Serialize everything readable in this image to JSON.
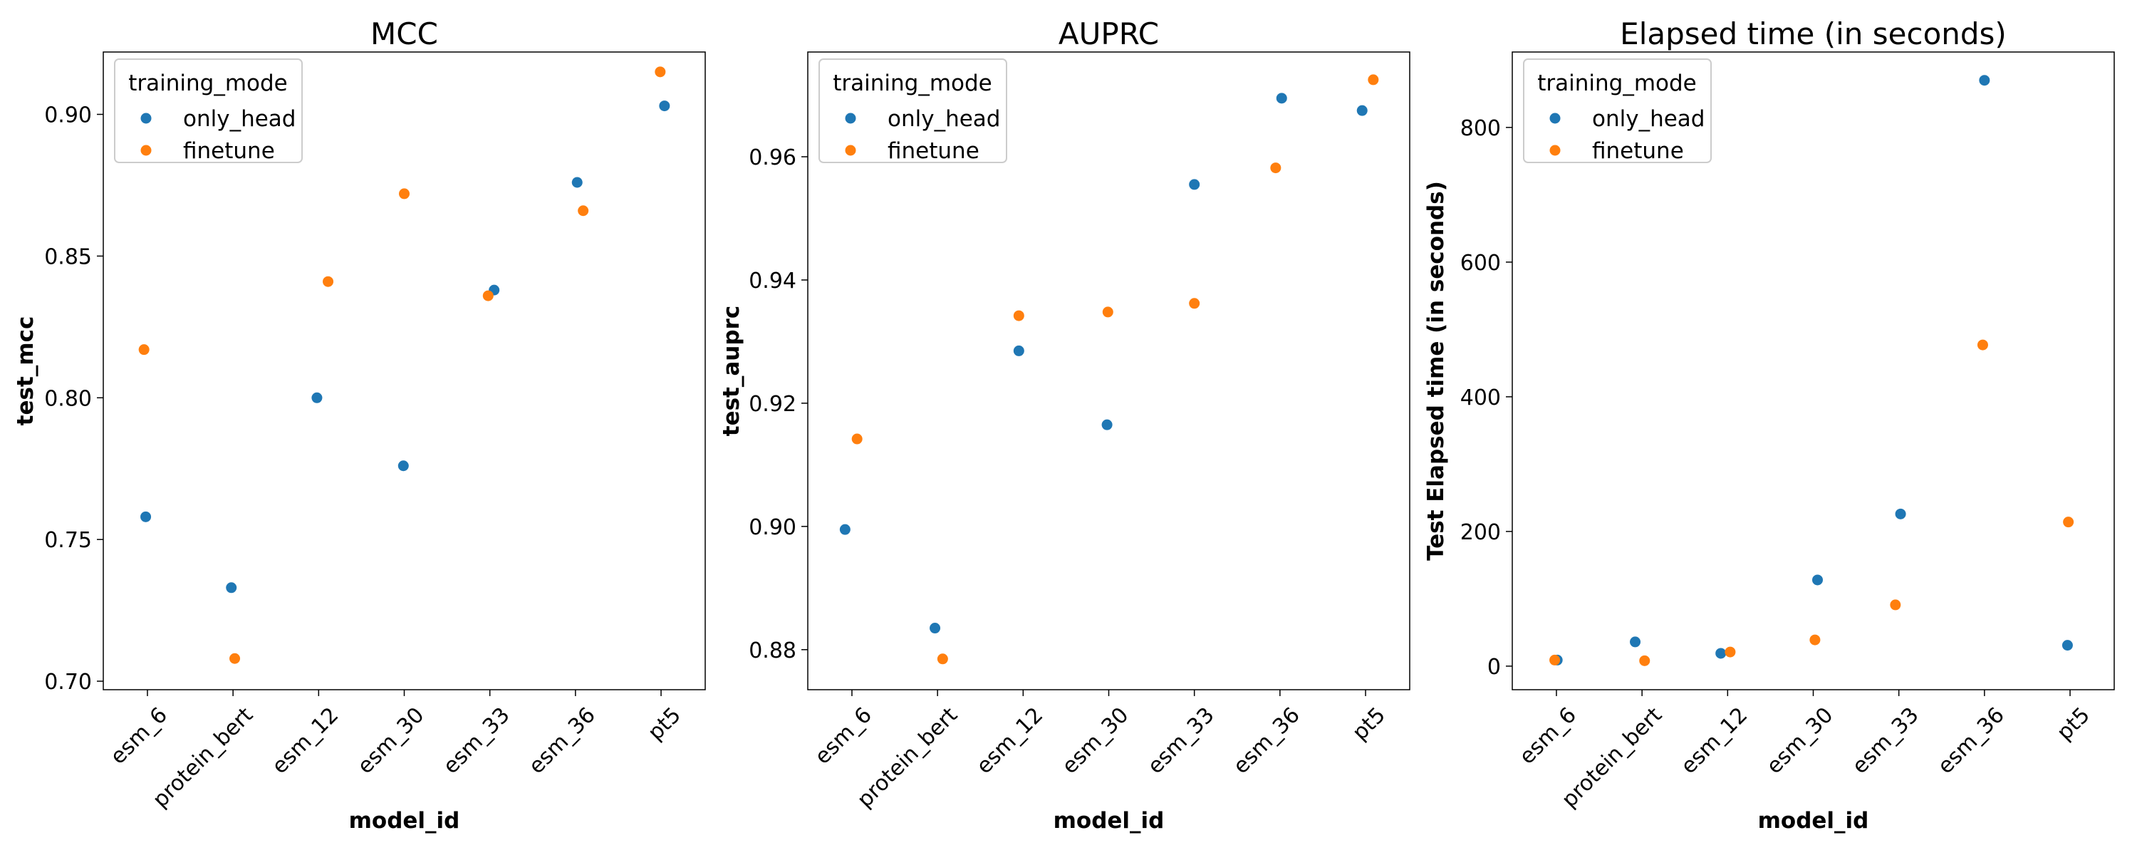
{
  "colors": {
    "only_head": "#1f77b4",
    "finetune": "#ff7f0e"
  },
  "chart_data": [
    {
      "type": "scatter",
      "title": "MCC",
      "xlabel": "model_id",
      "ylabel": "test_mcc",
      "categories": [
        "esm_6",
        "protein_bert",
        "esm_12",
        "esm_30",
        "esm_33",
        "esm_36",
        "pt5"
      ],
      "ylim": [
        0.697,
        0.922
      ],
      "yticks": [
        0.7,
        0.75,
        0.8,
        0.85,
        0.9
      ],
      "ytick_labels": [
        "0.70",
        "0.75",
        "0.80",
        "0.85",
        "0.90"
      ],
      "legend": {
        "title": "training_mode",
        "position": "top-left",
        "entries": [
          "only_head",
          "finetune"
        ]
      },
      "series": [
        {
          "name": "only_head",
          "x": [
            -0.02,
            0.98,
            1.98,
            2.99,
            4.05,
            5.02,
            6.04
          ],
          "values": [
            0.758,
            0.733,
            0.8,
            0.776,
            0.838,
            0.876,
            0.903
          ]
        },
        {
          "name": "finetune",
          "x": [
            -0.04,
            1.02,
            2.11,
            3.0,
            3.98,
            5.09,
            5.99
          ],
          "values": [
            0.817,
            0.708,
            0.841,
            0.872,
            0.836,
            0.866,
            0.915
          ]
        }
      ]
    },
    {
      "type": "scatter",
      "title": "AUPRC",
      "xlabel": "model_id",
      "ylabel": "test_auprc",
      "categories": [
        "esm_6",
        "protein_bert",
        "esm_12",
        "esm_30",
        "esm_33",
        "esm_36",
        "pt5"
      ],
      "ylim": [
        0.8735,
        0.977
      ],
      "yticks": [
        0.88,
        0.9,
        0.92,
        0.94,
        0.96
      ],
      "ytick_labels": [
        "0.88",
        "0.90",
        "0.92",
        "0.94",
        "0.96"
      ],
      "legend": {
        "title": "training_mode",
        "position": "top-left",
        "entries": [
          "only_head",
          "finetune"
        ]
      },
      "series": [
        {
          "name": "only_head",
          "x": [
            -0.08,
            0.97,
            1.95,
            2.98,
            4.0,
            5.02,
            5.96
          ],
          "values": [
            0.8995,
            0.8835,
            0.9285,
            0.9165,
            0.9555,
            0.9695,
            0.9675
          ]
        },
        {
          "name": "finetune",
          "x": [
            0.06,
            1.06,
            1.95,
            2.99,
            4.0,
            4.95,
            6.09
          ],
          "values": [
            0.9142,
            0.8785,
            0.9342,
            0.9348,
            0.9362,
            0.9582,
            0.9725
          ]
        }
      ]
    },
    {
      "type": "scatter",
      "title": "Elapsed time (in seconds)",
      "xlabel": "model_id",
      "ylabel": "Test Elapsed time (in seconds)",
      "categories": [
        "esm_6",
        "protein_bert",
        "esm_12",
        "esm_30",
        "esm_33",
        "esm_36",
        "pt5"
      ],
      "ylim": [
        -35,
        912
      ],
      "yticks": [
        0,
        200,
        400,
        600,
        800
      ],
      "ytick_labels": [
        "0",
        "200",
        "400",
        "600",
        "800"
      ],
      "legend": {
        "title": "training_mode",
        "position": "top-left",
        "entries": [
          "only_head",
          "finetune"
        ]
      },
      "series": [
        {
          "name": "only_head",
          "x": [
            0.01,
            0.92,
            1.92,
            3.05,
            4.02,
            5.0,
            5.97
          ],
          "values": [
            9,
            36,
            19,
            128,
            226,
            870,
            31
          ]
        },
        {
          "name": "finetune",
          "x": [
            -0.02,
            1.03,
            2.03,
            3.02,
            3.96,
            4.98,
            5.98
          ],
          "values": [
            9,
            8,
            21,
            39,
            91,
            477,
            214
          ]
        }
      ]
    }
  ]
}
